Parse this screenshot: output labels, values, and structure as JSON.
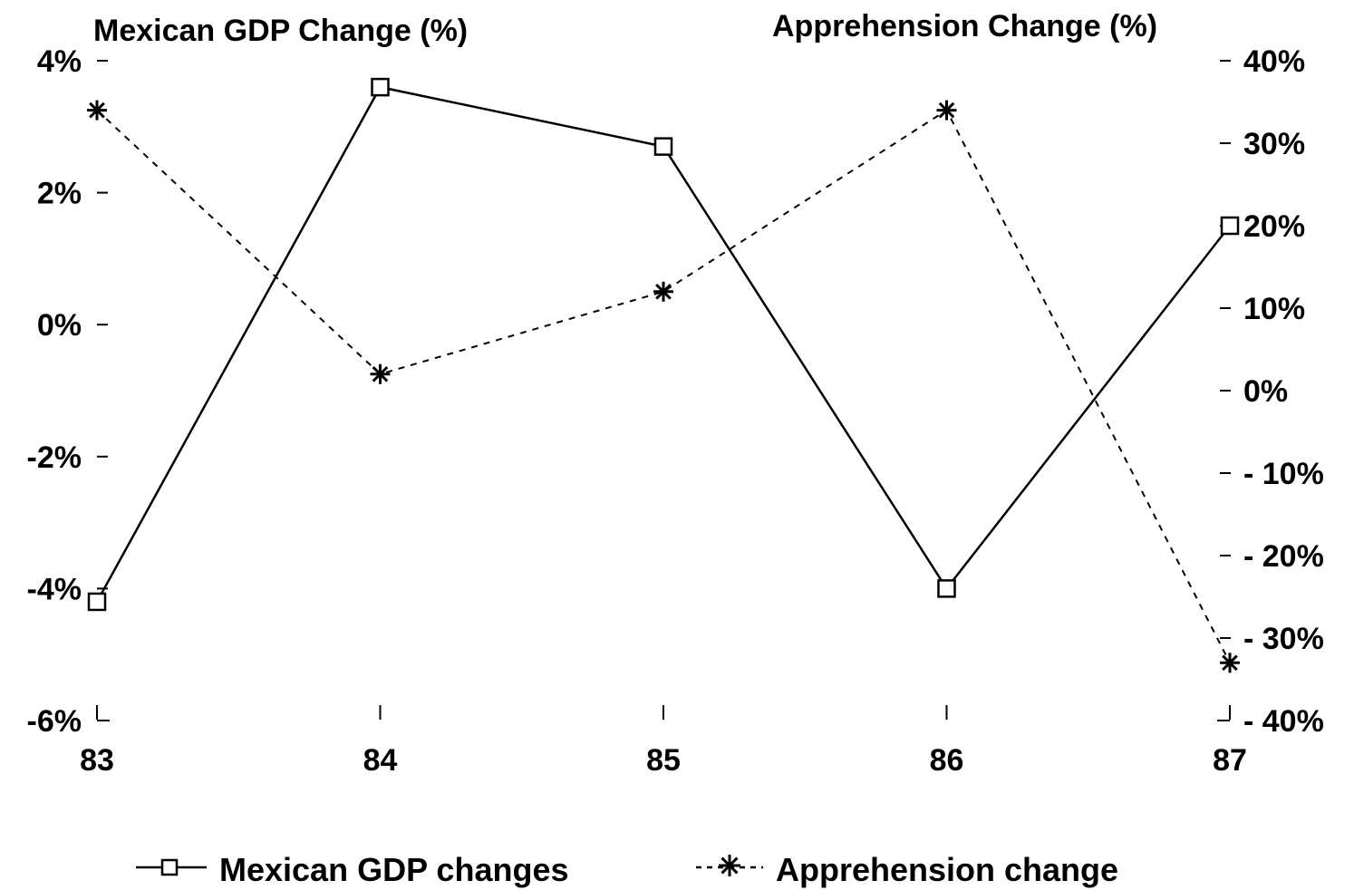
{
  "chart_data": {
    "type": "line",
    "title": "",
    "x": [
      "83",
      "84",
      "85",
      "86",
      "87"
    ],
    "left_axis": {
      "label": "Mexican GDP Change (%)",
      "ylim": [
        -6,
        4
      ],
      "ticks": [
        4,
        2,
        0,
        -2,
        -4,
        -6
      ],
      "tick_labels": [
        "4%",
        "2%",
        "0%",
        "-2%",
        "-4%",
        "-6%"
      ]
    },
    "right_axis": {
      "label": "Apprehension Change (%)",
      "ylim": [
        -40,
        40
      ],
      "ticks": [
        40,
        30,
        20,
        10,
        0,
        -10,
        -20,
        -30,
        -40
      ],
      "tick_labels": [
        "40%",
        "30%",
        "20%",
        "10%",
        "0%",
        "- 10%",
        "- 20%",
        "- 30%",
        "- 40%"
      ]
    },
    "series": [
      {
        "name": "Mexican GDP changes",
        "axis": "left",
        "marker": "square",
        "line_style": "solid",
        "values": [
          -4.2,
          3.6,
          2.7,
          -4.0,
          1.5
        ]
      },
      {
        "name": "Apprehension change",
        "axis": "right",
        "marker": "asterisk",
        "line_style": "dashed",
        "values": [
          34,
          2,
          12,
          34,
          -33
        ]
      }
    ],
    "grid": false,
    "legend_position": "bottom"
  }
}
